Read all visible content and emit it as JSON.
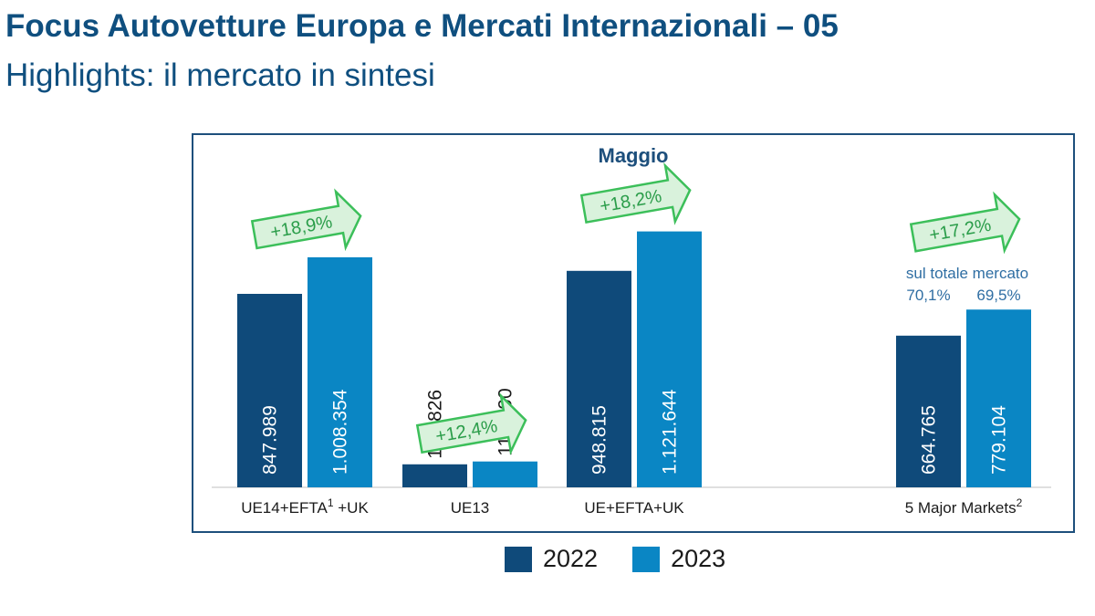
{
  "header": {
    "title": "Focus Autovetture Europa e Mercati Internazionali – 05",
    "subtitle": "Highlights: il mercato in sintesi"
  },
  "chart_data": {
    "type": "bar",
    "title": "Maggio",
    "categories": [
      {
        "label": "UE14+EFTA",
        "sup": "1",
        "suffix": " +UK"
      },
      {
        "label": "UE13",
        "sup": "",
        "suffix": ""
      },
      {
        "label": "UE+EFTA+UK",
        "sup": "",
        "suffix": ""
      },
      {
        "label": "5 Major Markets",
        "sup": "2",
        "suffix": ""
      }
    ],
    "series": [
      {
        "name": "2022",
        "color": "#0f4a7a",
        "values": [
          847989,
          100826,
          948815,
          664765
        ],
        "labels": [
          "847.989",
          "100.826",
          "948.815",
          "664.765"
        ]
      },
      {
        "name": "2023",
        "color": "#0a86c4",
        "values": [
          1008354,
          113290,
          1121644,
          779104
        ],
        "labels": [
          "1.008.354",
          "113.290",
          "1.121.644",
          "779.104"
        ]
      }
    ],
    "growth": [
      "+18,9%",
      "+12,4%",
      "+18,2%",
      "+17,2%"
    ],
    "share_note": {
      "category_index": 3,
      "text": "sul totale mercato",
      "values": [
        "70,1%",
        "69,5%"
      ]
    },
    "ylim": [
      0,
      1200000
    ],
    "legend_position": "bottom",
    "grid": false,
    "arrow_fill": "#d9f2dc",
    "arrow_stroke": "#3cbf5a",
    "axis_color": "#bfbfbf",
    "title_color": "#1d4f7c"
  }
}
